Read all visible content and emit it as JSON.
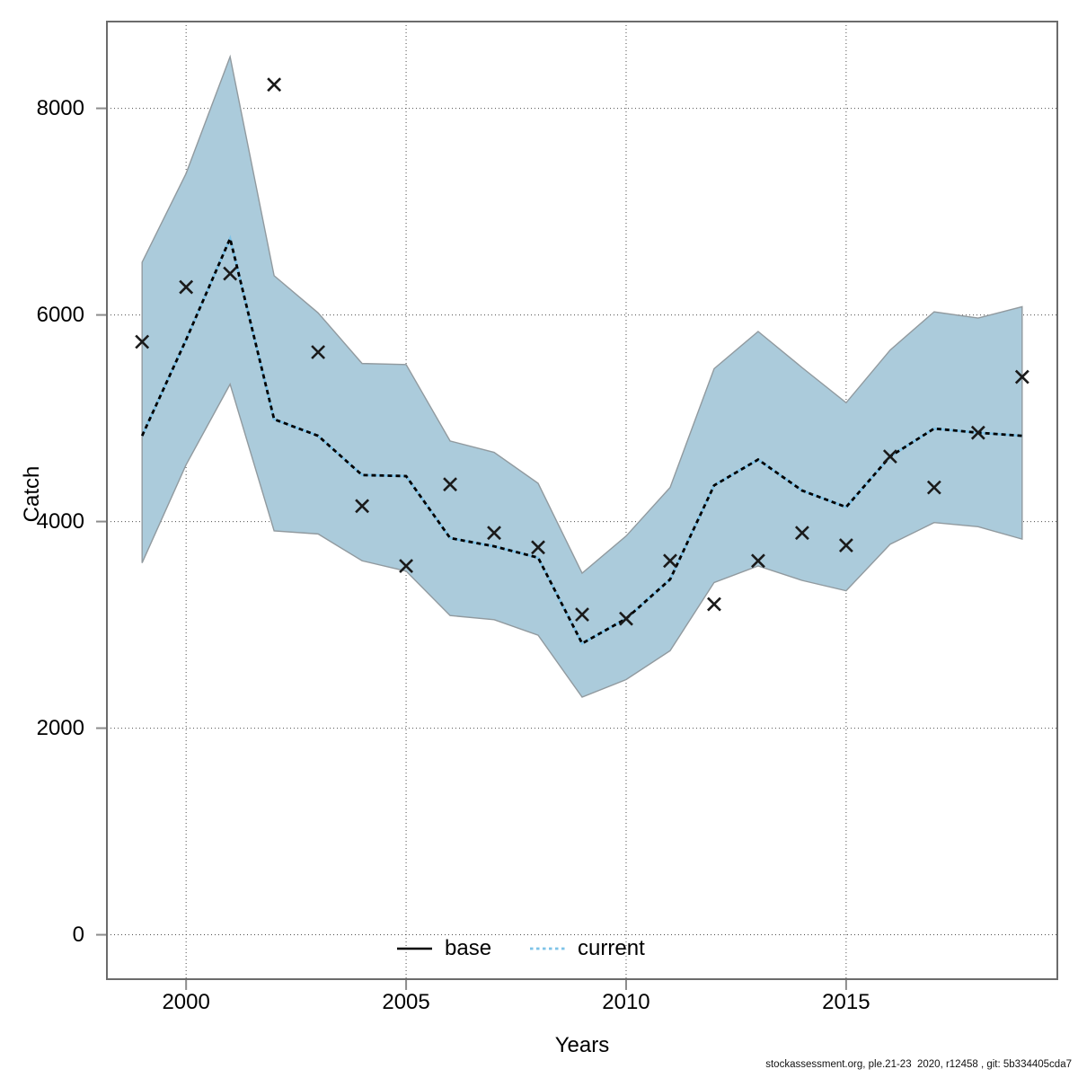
{
  "footer": "stockassessment.org, ple.21-23  2020, r12458 , git: 5b334405cda7",
  "chart_data": {
    "type": "line",
    "subtype": "fit-with-confidence-band-and-observations",
    "title": "",
    "xlabel": "Years",
    "ylabel": "Catch",
    "x": [
      1999,
      2000,
      2001,
      2002,
      2003,
      2004,
      2005,
      2006,
      2007,
      2008,
      2009,
      2010,
      2011,
      2012,
      2013,
      2014,
      2015,
      2016,
      2017,
      2018,
      2019
    ],
    "observations": [
      5740,
      6270,
      6400,
      8230,
      5640,
      4150,
      3570,
      4360,
      3890,
      3750,
      3100,
      3060,
      3620,
      3200,
      3620,
      3890,
      3770,
      4630,
      4330,
      4860,
      5400
    ],
    "current_fit": [
      4830,
      5760,
      6740,
      4990,
      4830,
      4450,
      4440,
      3840,
      3760,
      3650,
      2820,
      3060,
      3440,
      4350,
      4600,
      4300,
      4140,
      4630,
      4900,
      4860,
      4830
    ],
    "ci_upper": [
      6510,
      7370,
      8500,
      6380,
      6020,
      5530,
      5520,
      4780,
      4670,
      4370,
      3500,
      3860,
      4330,
      5480,
      5840,
      5490,
      5150,
      5660,
      6030,
      5970,
      6080
    ],
    "ci_lower": [
      3600,
      4550,
      5330,
      3910,
      3880,
      3620,
      3520,
      3090,
      3050,
      2900,
      2300,
      2470,
      2750,
      3410,
      3570,
      3430,
      3330,
      3780,
      3990,
      3950,
      3830
    ],
    "xticks": [
      {
        "value": 2000,
        "label": "2000"
      },
      {
        "value": 2005,
        "label": "2005"
      },
      {
        "value": 2010,
        "label": "2010"
      },
      {
        "value": 2015,
        "label": "2015"
      }
    ],
    "yticks": [
      {
        "value": 0,
        "label": "0"
      },
      {
        "value": 2000,
        "label": "2000"
      },
      {
        "value": 4000,
        "label": "4000"
      },
      {
        "value": 6000,
        "label": "6000"
      },
      {
        "value": 8000,
        "label": "8000"
      }
    ],
    "xlim": [
      1998.2,
      2019.8
    ],
    "ylim": [
      -430,
      8840
    ],
    "grid": true,
    "legend_position": "bottom-center-inside",
    "legend": [
      {
        "label": "base",
        "line_style": "solid",
        "color": "#000000"
      },
      {
        "label": "current",
        "line_style": "dashed",
        "color": "#7ec3e8"
      }
    ],
    "colors": {
      "band_fill": "#abcbdb",
      "band_edge": "#919a9f",
      "current_line": "#7ec3e8",
      "current_dash": "#000000",
      "marker": "#1a1a1a",
      "grid": "#4d4d4d",
      "frame": "#6b6b6b",
      "tick": "#8c8c8c"
    }
  }
}
